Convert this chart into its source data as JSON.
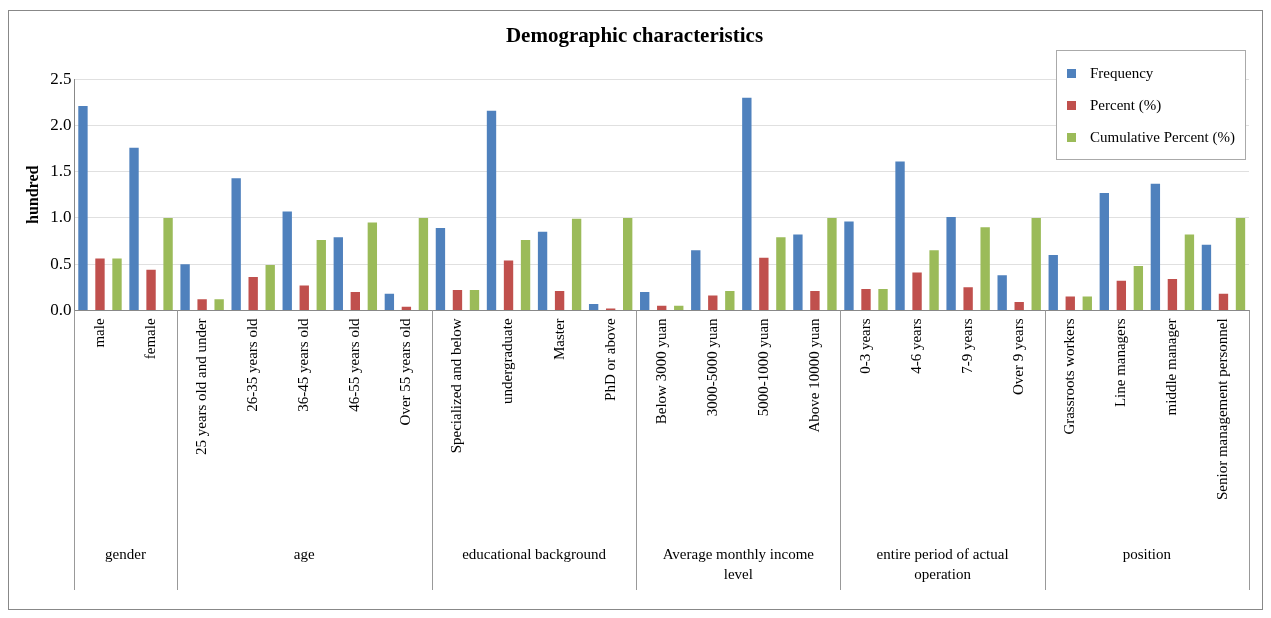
{
  "chart_data": {
    "type": "bar",
    "title": "Demographic characteristics",
    "ylabel": "hundred",
    "categories": [
      "male",
      "female",
      "25 years old and under",
      "26-35 years old",
      "36-45 years old",
      "46-55 years old",
      "Over 55 years old",
      "Specialized and below",
      "undergraduate",
      "Master",
      "PhD or above",
      "Below 3000 yuan",
      "3000-5000 yuan",
      "5000-1000 yuan",
      "Above 10000 yuan",
      "0-3 years",
      "4-6 years",
      "7-9 years",
      "Over 9 years",
      "Grassroots workers",
      "Line managers",
      "middle manager",
      "Senior management personnel"
    ],
    "series": [
      {
        "name": "Frequency",
        "color": "#4f81bd",
        "values": [
          2.21,
          1.76,
          0.5,
          1.43,
          1.07,
          0.79,
          0.18,
          0.89,
          2.16,
          0.85,
          0.07,
          0.2,
          0.65,
          2.3,
          0.82,
          0.96,
          1.61,
          1.01,
          0.38,
          0.6,
          1.27,
          1.37,
          0.71
        ]
      },
      {
        "name": "Percent (%)",
        "color": "#c0504d",
        "values": [
          0.56,
          0.44,
          0.12,
          0.36,
          0.27,
          0.2,
          0.04,
          0.22,
          0.54,
          0.21,
          0.02,
          0.05,
          0.16,
          0.57,
          0.21,
          0.23,
          0.41,
          0.25,
          0.09,
          0.15,
          0.32,
          0.34,
          0.18
        ]
      },
      {
        "name": "Cumulative Percent (%)",
        "color": "#9bbb59",
        "values": [
          0.56,
          1.0,
          0.12,
          0.49,
          0.76,
          0.95,
          1.0,
          0.22,
          0.76,
          0.99,
          1.0,
          0.05,
          0.21,
          0.79,
          1.0,
          0.23,
          0.65,
          0.9,
          1.0,
          0.15,
          0.48,
          0.82,
          1.0
        ]
      }
    ],
    "annotations": [
      "gender",
      "age",
      "educational background",
      "Average monthly income level",
      "entire period of actual operation",
      "position"
    ],
    "ylim": [
      0,
      2.5
    ],
    "yticks": [
      {
        "value": 0,
        "label": "0.0"
      },
      {
        "value": 0.5,
        "label": "0.5"
      },
      {
        "value": 1,
        "label": "1.0"
      },
      {
        "value": 1.5,
        "label": "1.5"
      },
      {
        "value": 2,
        "label": "2.0"
      },
      {
        "value": 2.5,
        "label": "2.5"
      }
    ],
    "grid": "y",
    "legend": "top right"
  }
}
